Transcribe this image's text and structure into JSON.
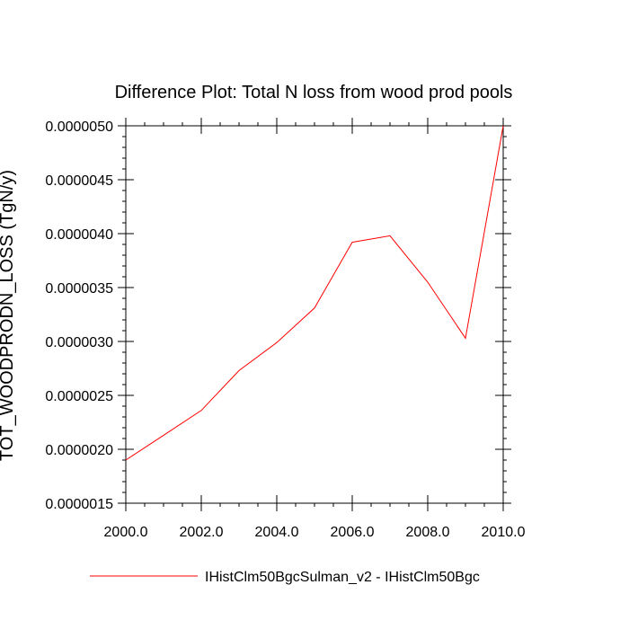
{
  "chart_data": {
    "type": "line",
    "title": "Difference Plot: Total N loss from wood prod pools",
    "xlabel": "",
    "ylabel": "TOT_WOODPRODN_LOSS (TgN/y)",
    "xlim": [
      2000,
      2010
    ],
    "ylim": [
      1.5e-06,
      5e-06
    ],
    "x_ticks": [
      2000,
      2002,
      2004,
      2006,
      2008,
      2010
    ],
    "x_tick_labels": [
      "2000.0",
      "2002.0",
      "2004.0",
      "2006.0",
      "2008.0",
      "2010.0"
    ],
    "y_ticks": [
      1.5e-06,
      2e-06,
      2.5e-06,
      3e-06,
      3.5e-06,
      4e-06,
      4.5e-06,
      5e-06
    ],
    "y_tick_labels": [
      "0.0000015",
      "0.0000020",
      "0.0000025",
      "0.0000030",
      "0.0000035",
      "0.0000040",
      "0.0000045",
      "0.0000050"
    ],
    "grid": false,
    "legend_position": "bottom-center",
    "series": [
      {
        "name": "IHistClm50BgcSulman_v2 - IHistClm50Bgc",
        "color": "#ff0000",
        "x": [
          2000,
          2001,
          2002,
          2003,
          2004,
          2005,
          2006,
          2007,
          2008,
          2009,
          2010
        ],
        "values": [
          1.9e-06,
          2.13e-06,
          2.36e-06,
          2.73e-06,
          2.99e-06,
          3.31e-06,
          3.92e-06,
          3.98e-06,
          3.55e-06,
          3.03e-06,
          5e-06
        ]
      }
    ]
  }
}
